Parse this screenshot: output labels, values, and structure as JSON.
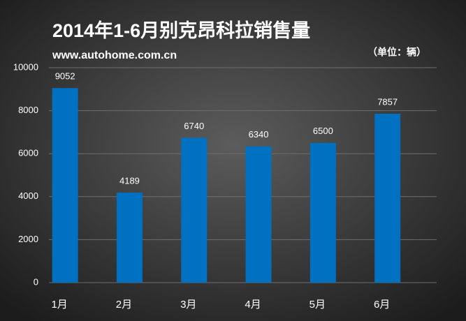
{
  "chart_data": {
    "type": "bar",
    "title": "2014年1-6月别克昂科拉销售量",
    "subtitle": "www.autohome.com.cn",
    "unit_label": "（单位：辆）",
    "categories": [
      "1月",
      "2月",
      "3月",
      "4月",
      "5月",
      "6月"
    ],
    "values": [
      9052,
      4189,
      6740,
      6340,
      6500,
      7857
    ],
    "color": "#0070c0",
    "ylim": [
      0,
      10000
    ],
    "yticks": [
      0,
      2000,
      4000,
      6000,
      8000,
      10000
    ],
    "grid": true
  }
}
